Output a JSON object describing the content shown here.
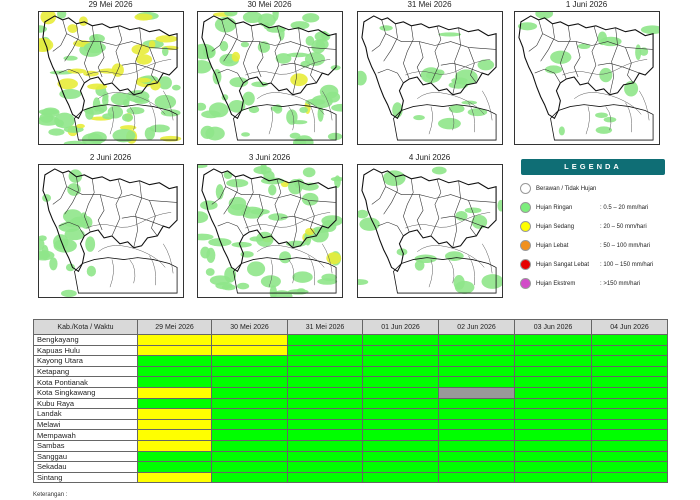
{
  "panels": [
    {
      "date": "29 Mei 2026",
      "coverage": "heavy-mix"
    },
    {
      "date": "30 Mei 2026",
      "coverage": "mix"
    },
    {
      "date": "31 Mei 2026",
      "coverage": "sparse"
    },
    {
      "date": "1 Juni 2026",
      "coverage": "sparse"
    },
    {
      "date": "2 Juni 2026",
      "coverage": "west"
    },
    {
      "date": "3 Juni 2026",
      "coverage": "mix"
    },
    {
      "date": "4 Juni 2026",
      "coverage": "sparse"
    }
  ],
  "legend": {
    "title": "LEGENDA",
    "items": [
      {
        "name": "Berawan / Tidak Hujan",
        "range": "",
        "color": "#ffffff"
      },
      {
        "name": "Hujan Ringan",
        "range": ": 0.5 – 20 mm/hari",
        "color": "#7dee7d"
      },
      {
        "name": "Hujan Sedang",
        "range": ": 20 – 50 mm/hari",
        "color": "#ffff00"
      },
      {
        "name": "Hujan Lebat",
        "range": ": 50 – 100 mm/hari",
        "color": "#f0901e"
      },
      {
        "name": "Hujan Sangat Lebat",
        "range": ": 100 – 150 mm/hari",
        "color": "#e60000"
      },
      {
        "name": "Hujan Ekstrem",
        "range": ": >150 mm/hari",
        "color": "#d24bc8"
      }
    ]
  },
  "table": {
    "header": "Kab./Kota / Waktu",
    "columns": [
      "29 Mei 2026",
      "30 Mei 2026",
      "31 Mei 2026",
      "01 Jun 2026",
      "02 Jun 2026",
      "03 Jun 2026",
      "04 Jun 2026"
    ],
    "rows": [
      {
        "name": "Bengkayang",
        "cells": [
          "y",
          "y",
          "g",
          "g",
          "g",
          "g",
          "g"
        ]
      },
      {
        "name": "Kapuas Hulu",
        "cells": [
          "y",
          "y",
          "g",
          "g",
          "g",
          "g",
          "g"
        ]
      },
      {
        "name": "Kayong Utara",
        "cells": [
          "g",
          "g",
          "g",
          "g",
          "g",
          "g",
          "g"
        ]
      },
      {
        "name": "Ketapang",
        "cells": [
          "g",
          "g",
          "g",
          "g",
          "g",
          "g",
          "g"
        ]
      },
      {
        "name": "Kota Pontianak",
        "cells": [
          "g",
          "g",
          "g",
          "g",
          "g",
          "g",
          "g"
        ]
      },
      {
        "name": "Kota Singkawang",
        "cells": [
          "y",
          "g",
          "g",
          "g",
          "x",
          "g",
          "g"
        ]
      },
      {
        "name": "Kubu Raya",
        "cells": [
          "g",
          "g",
          "g",
          "g",
          "g",
          "g",
          "g"
        ]
      },
      {
        "name": "Landak",
        "cells": [
          "y",
          "g",
          "g",
          "g",
          "g",
          "g",
          "g"
        ]
      },
      {
        "name": "Melawi",
        "cells": [
          "y",
          "g",
          "g",
          "g",
          "g",
          "g",
          "g"
        ]
      },
      {
        "name": "Mempawah",
        "cells": [
          "y",
          "g",
          "g",
          "g",
          "g",
          "g",
          "g"
        ]
      },
      {
        "name": "Sambas",
        "cells": [
          "y",
          "g",
          "g",
          "g",
          "g",
          "g",
          "g"
        ]
      },
      {
        "name": "Sanggau",
        "cells": [
          "g",
          "g",
          "g",
          "g",
          "g",
          "g",
          "g"
        ]
      },
      {
        "name": "Sekadau",
        "cells": [
          "g",
          "g",
          "g",
          "g",
          "g",
          "g",
          "g"
        ]
      },
      {
        "name": "Sintang",
        "cells": [
          "y",
          "g",
          "g",
          "g",
          "g",
          "g",
          "g"
        ]
      }
    ]
  },
  "footnote": "Keterangan :"
}
